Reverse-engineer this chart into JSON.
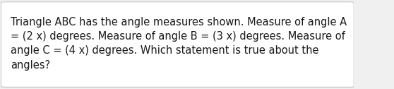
{
  "text": "Triangle ABC has the angle measures shown. Measure of angle A\n= (2 x) degrees. Measure of angle B = (3 x) degrees. Measure of\nangle C = (4 x) degrees. Which statement is true about the\nangles?",
  "background_color": "#f0f0f0",
  "box_color": "#ffffff",
  "text_color": "#1a1a1a",
  "font_size": 10.5,
  "border_color": "#cccccc",
  "fig_width": 5.58,
  "fig_height": 1.26
}
